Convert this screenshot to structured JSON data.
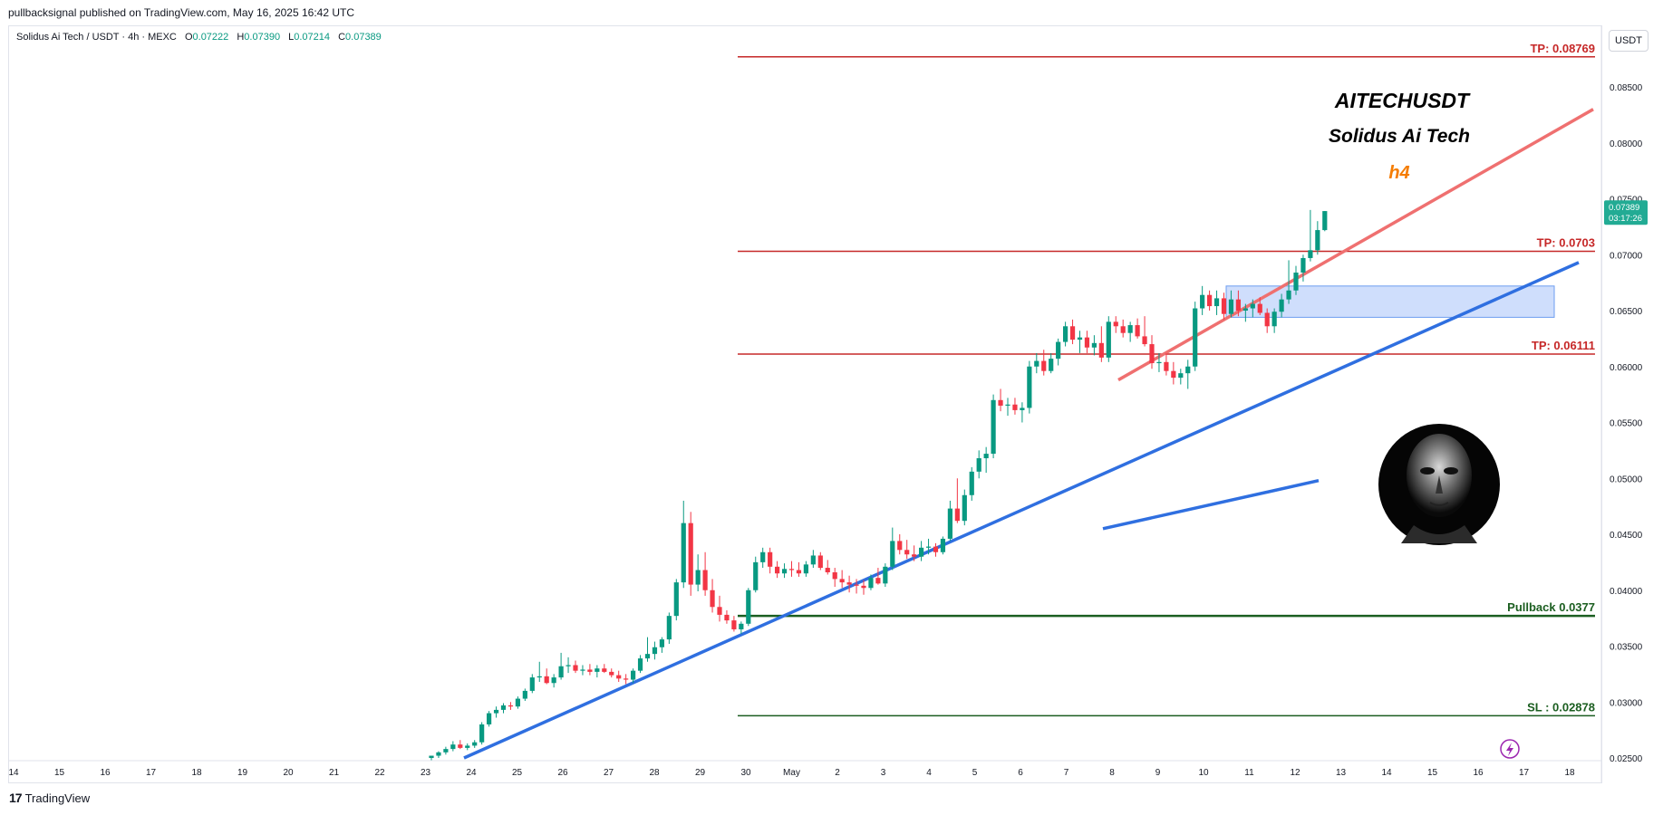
{
  "header": {
    "published_by": "pullbacksignal published on TradingView.com, May 16, 2025 16:42 UTC"
  },
  "legend": {
    "symbol": "Solidus Ai Tech / USDT · 4h · MEXC",
    "open": "0.07222",
    "high": "0.07390",
    "low": "0.07214",
    "close": "0.07389",
    "open_prefix": "O",
    "high_prefix": "H",
    "low_prefix": "L",
    "close_prefix": "C"
  },
  "unit_badge": "USDT",
  "footer": {
    "brand": "TradingView"
  },
  "chart_data": {
    "type": "candlestick",
    "title": "AITECHUSDT",
    "subtitle": "Solidus Ai Tech",
    "timeframe_label": "h4",
    "y_range": [
      0.025,
      0.0885
    ],
    "y_ticks": [
      "0.08500",
      "0.08000",
      "0.07500",
      "0.07000",
      "0.06500",
      "0.06000",
      "0.05500",
      "0.05000",
      "0.04500",
      "0.04000",
      "0.03500",
      "0.03000",
      "0.02500"
    ],
    "x_ticks": [
      "14",
      "15",
      "16",
      "17",
      "18",
      "19",
      "20",
      "21",
      "22",
      "23",
      "24",
      "25",
      "26",
      "27",
      "28",
      "29",
      "30",
      "May",
      "2",
      "3",
      "4",
      "5",
      "6",
      "7",
      "8",
      "9",
      "10",
      "11",
      "12",
      "13",
      "14",
      "15",
      "16",
      "17",
      "18"
    ],
    "last_price": "0.07389",
    "countdown": "03:17:26",
    "levels": [
      {
        "label": "TP: 0.08769",
        "value": 0.08769,
        "color": "#c62828",
        "width": 1.5
      },
      {
        "label": "TP: 0.0703",
        "value": 0.0703,
        "color": "#c62828",
        "width": 1.5
      },
      {
        "label": "TP: 0.06111",
        "value": 0.06111,
        "color": "#c62828",
        "width": 1.5
      },
      {
        "label": "Pullback 0.0377",
        "value": 0.0377,
        "color": "#1b5e20",
        "width": 2.5
      },
      {
        "label": "SL : 0.02878",
        "value": 0.02878,
        "color": "#1b5e20",
        "width": 1.5
      }
    ],
    "colors": {
      "up": "#089981",
      "down": "#f23645",
      "support_trendline": "#2f6fe0",
      "resistance_trendline": "#ef7070",
      "zone_fill": "#c7d8fb",
      "zone_border": "#6d9df0",
      "timeframe_label": "#f57c00",
      "last_price_badge": "#22ab94"
    },
    "candles": [
      [
        0.025,
        0.0252,
        0.0248,
        0.0252
      ],
      [
        0.0252,
        0.0256,
        0.025,
        0.0255
      ],
      [
        0.0255,
        0.026,
        0.0253,
        0.0258
      ],
      [
        0.0258,
        0.0265,
        0.0256,
        0.0262
      ],
      [
        0.0262,
        0.0266,
        0.0258,
        0.0259
      ],
      [
        0.0259,
        0.0263,
        0.0257,
        0.0261
      ],
      [
        0.0261,
        0.0266,
        0.0259,
        0.0264
      ],
      [
        0.0264,
        0.0282,
        0.0262,
        0.028
      ],
      [
        0.028,
        0.0292,
        0.0278,
        0.029
      ],
      [
        0.029,
        0.0296,
        0.0286,
        0.0293
      ],
      [
        0.0293,
        0.0299,
        0.029,
        0.0297
      ],
      [
        0.0297,
        0.03,
        0.0293,
        0.0296
      ],
      [
        0.0296,
        0.0305,
        0.0294,
        0.0303
      ],
      [
        0.0303,
        0.0312,
        0.0301,
        0.031
      ],
      [
        0.031,
        0.0325,
        0.0308,
        0.0322
      ],
      [
        0.0322,
        0.0336,
        0.0318,
        0.0323
      ],
      [
        0.0323,
        0.033,
        0.0316,
        0.0317
      ],
      [
        0.0317,
        0.0325,
        0.0313,
        0.0322
      ],
      [
        0.0322,
        0.0344,
        0.032,
        0.0332
      ],
      [
        0.0332,
        0.034,
        0.0326,
        0.0333
      ],
      [
        0.0333,
        0.0337,
        0.0326,
        0.0328
      ],
      [
        0.0328,
        0.0333,
        0.0324,
        0.0329
      ],
      [
        0.0329,
        0.0334,
        0.0324,
        0.0327
      ],
      [
        0.0327,
        0.0333,
        0.0322,
        0.033
      ],
      [
        0.033,
        0.0334,
        0.0326,
        0.0327
      ],
      [
        0.0327,
        0.033,
        0.0322,
        0.0324
      ],
      [
        0.0324,
        0.0328,
        0.0318,
        0.0321
      ],
      [
        0.0321,
        0.0325,
        0.0316,
        0.032
      ],
      [
        0.032,
        0.033,
        0.0317,
        0.0328
      ],
      [
        0.0328,
        0.0342,
        0.0326,
        0.0339
      ],
      [
        0.0339,
        0.0358,
        0.0336,
        0.0343
      ],
      [
        0.0343,
        0.0354,
        0.0338,
        0.0349
      ],
      [
        0.0349,
        0.0358,
        0.0344,
        0.0356
      ],
      [
        0.0356,
        0.038,
        0.0352,
        0.0377
      ],
      [
        0.0377,
        0.041,
        0.0373,
        0.0407
      ],
      [
        0.0407,
        0.048,
        0.0402,
        0.046
      ],
      [
        0.046,
        0.047,
        0.0395,
        0.0405
      ],
      [
        0.0405,
        0.0432,
        0.0399,
        0.0418
      ],
      [
        0.0418,
        0.0434,
        0.0395,
        0.04
      ],
      [
        0.04,
        0.041,
        0.038,
        0.0385
      ],
      [
        0.0385,
        0.0395,
        0.0372,
        0.0378
      ],
      [
        0.0378,
        0.0382,
        0.037,
        0.0373
      ],
      [
        0.0373,
        0.0377,
        0.0363,
        0.0365
      ],
      [
        0.0365,
        0.0372,
        0.0361,
        0.037
      ],
      [
        0.037,
        0.0402,
        0.0368,
        0.04
      ],
      [
        0.04,
        0.043,
        0.0398,
        0.0425
      ],
      [
        0.0425,
        0.0438,
        0.042,
        0.0434
      ],
      [
        0.0434,
        0.0438,
        0.0415,
        0.0421
      ],
      [
        0.0421,
        0.0426,
        0.0411,
        0.0415
      ],
      [
        0.0415,
        0.0424,
        0.0411,
        0.0419
      ],
      [
        0.0419,
        0.0426,
        0.0412,
        0.0418
      ],
      [
        0.0418,
        0.0425,
        0.0412,
        0.0415
      ],
      [
        0.0415,
        0.0426,
        0.0412,
        0.0423
      ],
      [
        0.0423,
        0.0436,
        0.042,
        0.0431
      ],
      [
        0.0431,
        0.0434,
        0.0418,
        0.042
      ],
      [
        0.042,
        0.0427,
        0.0414,
        0.0416
      ],
      [
        0.0416,
        0.042,
        0.0403,
        0.041
      ],
      [
        0.041,
        0.0418,
        0.0402,
        0.0407
      ],
      [
        0.0407,
        0.0413,
        0.0398,
        0.0405
      ],
      [
        0.0405,
        0.041,
        0.0397,
        0.0404
      ],
      [
        0.0404,
        0.0409,
        0.0396,
        0.0402
      ],
      [
        0.0402,
        0.0414,
        0.04,
        0.0411
      ],
      [
        0.0411,
        0.042,
        0.0405,
        0.0406
      ],
      [
        0.0406,
        0.0424,
        0.0403,
        0.0421
      ],
      [
        0.0421,
        0.0456,
        0.0418,
        0.0444
      ],
      [
        0.0444,
        0.045,
        0.0432,
        0.0436
      ],
      [
        0.0436,
        0.0445,
        0.0428,
        0.0432
      ],
      [
        0.0432,
        0.044,
        0.0426,
        0.043
      ],
      [
        0.043,
        0.0444,
        0.0426,
        0.0438
      ],
      [
        0.0438,
        0.0446,
        0.0432,
        0.0439
      ],
      [
        0.0439,
        0.0442,
        0.043,
        0.0434
      ],
      [
        0.0434,
        0.0448,
        0.0432,
        0.0446
      ],
      [
        0.0446,
        0.048,
        0.0444,
        0.0473
      ],
      [
        0.0473,
        0.05,
        0.046,
        0.0462
      ],
      [
        0.0462,
        0.049,
        0.0458,
        0.0485
      ],
      [
        0.0485,
        0.051,
        0.048,
        0.0506
      ],
      [
        0.0506,
        0.0525,
        0.05,
        0.0518
      ],
      [
        0.0518,
        0.0528,
        0.0505,
        0.0522
      ],
      [
        0.0522,
        0.0575,
        0.0518,
        0.057
      ],
      [
        0.057,
        0.058,
        0.056,
        0.0565
      ],
      [
        0.0565,
        0.0572,
        0.0556,
        0.0566
      ],
      [
        0.0566,
        0.0572,
        0.0557,
        0.0561
      ],
      [
        0.0561,
        0.0568,
        0.055,
        0.0563
      ],
      [
        0.0563,
        0.0605,
        0.0558,
        0.06
      ],
      [
        0.06,
        0.0612,
        0.0594,
        0.0605
      ],
      [
        0.0605,
        0.0615,
        0.0592,
        0.0596
      ],
      [
        0.0596,
        0.0612,
        0.0594,
        0.0607
      ],
      [
        0.0607,
        0.0625,
        0.0601,
        0.0622
      ],
      [
        0.0622,
        0.064,
        0.0618,
        0.0636
      ],
      [
        0.0636,
        0.0642,
        0.062,
        0.0624
      ],
      [
        0.0624,
        0.0632,
        0.0612,
        0.0626
      ],
      [
        0.0626,
        0.0632,
        0.0612,
        0.0617
      ],
      [
        0.0617,
        0.0628,
        0.061,
        0.0621
      ],
      [
        0.0621,
        0.0636,
        0.0604,
        0.0608
      ],
      [
        0.0608,
        0.0645,
        0.0604,
        0.064
      ],
      [
        0.064,
        0.0645,
        0.063,
        0.0636
      ],
      [
        0.0636,
        0.0642,
        0.0626,
        0.063
      ],
      [
        0.063,
        0.064,
        0.0622,
        0.0637
      ],
      [
        0.0637,
        0.0643,
        0.0625,
        0.0627
      ],
      [
        0.0627,
        0.0645,
        0.0618,
        0.062
      ],
      [
        0.062,
        0.0628,
        0.0598,
        0.0603
      ],
      [
        0.0603,
        0.0612,
        0.0595,
        0.0604
      ],
      [
        0.0604,
        0.0612,
        0.0592,
        0.0596
      ],
      [
        0.0596,
        0.0604,
        0.0584,
        0.059
      ],
      [
        0.059,
        0.0598,
        0.0584,
        0.0594
      ],
      [
        0.0594,
        0.0606,
        0.058,
        0.06
      ],
      [
        0.06,
        0.0658,
        0.0596,
        0.0652
      ],
      [
        0.0652,
        0.0672,
        0.0646,
        0.0664
      ],
      [
        0.0664,
        0.0668,
        0.065,
        0.0654
      ],
      [
        0.0654,
        0.0668,
        0.0646,
        0.0661
      ],
      [
        0.0661,
        0.0666,
        0.0642,
        0.0647
      ],
      [
        0.0647,
        0.0668,
        0.0644,
        0.066
      ],
      [
        0.066,
        0.0668,
        0.0645,
        0.065
      ],
      [
        0.065,
        0.0656,
        0.064,
        0.0652
      ],
      [
        0.0652,
        0.066,
        0.0644,
        0.0656
      ],
      [
        0.0656,
        0.0662,
        0.0646,
        0.0648
      ],
      [
        0.0648,
        0.0652,
        0.063,
        0.0636
      ],
      [
        0.0636,
        0.0652,
        0.063,
        0.0649
      ],
      [
        0.0649,
        0.0665,
        0.0644,
        0.066
      ],
      [
        0.066,
        0.0695,
        0.0656,
        0.0668
      ],
      [
        0.0668,
        0.069,
        0.0664,
        0.0684
      ],
      [
        0.0684,
        0.07,
        0.0676,
        0.0697
      ],
      [
        0.0697,
        0.074,
        0.0694,
        0.0704
      ],
      [
        0.0704,
        0.073,
        0.07,
        0.0722
      ],
      [
        0.0722,
        0.0739,
        0.0721,
        0.0739
      ]
    ]
  }
}
